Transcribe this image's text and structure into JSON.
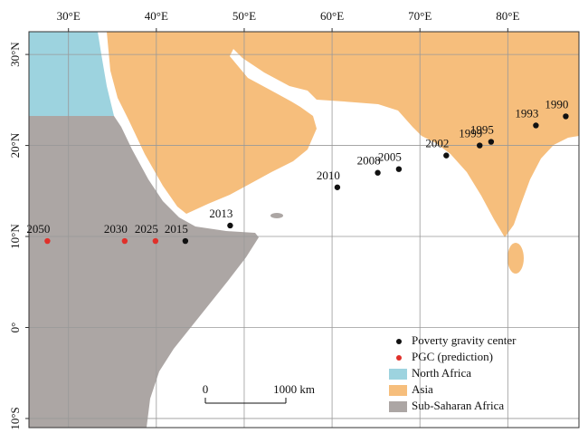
{
  "chart_data": {
    "type": "scatter",
    "xlim": [
      25.5,
      88.1
    ],
    "ylim": [
      -11,
      32.5
    ],
    "xticks": [
      {
        "value": 30,
        "label": "30°E"
      },
      {
        "value": 40,
        "label": "40°E"
      },
      {
        "value": 50,
        "label": "50°E"
      },
      {
        "value": 60,
        "label": "60°E"
      },
      {
        "value": 70,
        "label": "70°E"
      },
      {
        "value": 80,
        "label": "80°E"
      }
    ],
    "yticks": [
      {
        "value": 30,
        "label": "30°N"
      },
      {
        "value": 20,
        "label": "20°N"
      },
      {
        "value": 10,
        "label": "10°N"
      },
      {
        "value": 0,
        "label": "0°"
      },
      {
        "value": -10,
        "label": "10°S"
      }
    ],
    "grid": true,
    "series": [
      {
        "name": "Poverty gravity center",
        "color": "#111111",
        "x": [
          86.6,
          83.2,
          78.1,
          76.8,
          73.0,
          67.6,
          65.2,
          60.6,
          48.4,
          43.3
        ],
        "y": [
          23.2,
          22.2,
          20.4,
          20.0,
          18.9,
          17.4,
          17.0,
          15.4,
          11.2,
          9.5
        ],
        "labels": [
          "1990",
          "1993",
          "1995",
          "1999",
          "2002",
          "2005",
          "2008",
          "2010",
          "2013",
          "2015"
        ]
      },
      {
        "name": "PGC (prediction)",
        "color": "#e0302a",
        "x": [
          39.9,
          36.4,
          27.6
        ],
        "y": [
          9.5,
          9.5,
          9.5
        ],
        "labels": [
          "2025",
          "2030",
          "2050"
        ]
      }
    ],
    "regions": [
      {
        "name": "North Africa",
        "color": "#9dd3df"
      },
      {
        "name": "Asia",
        "color": "#f6be7c"
      },
      {
        "name": "Sub-Saharan Africa",
        "color": "#aca6a4"
      }
    ],
    "scale_bar": {
      "labels": [
        "0",
        "1000 km"
      ]
    }
  }
}
